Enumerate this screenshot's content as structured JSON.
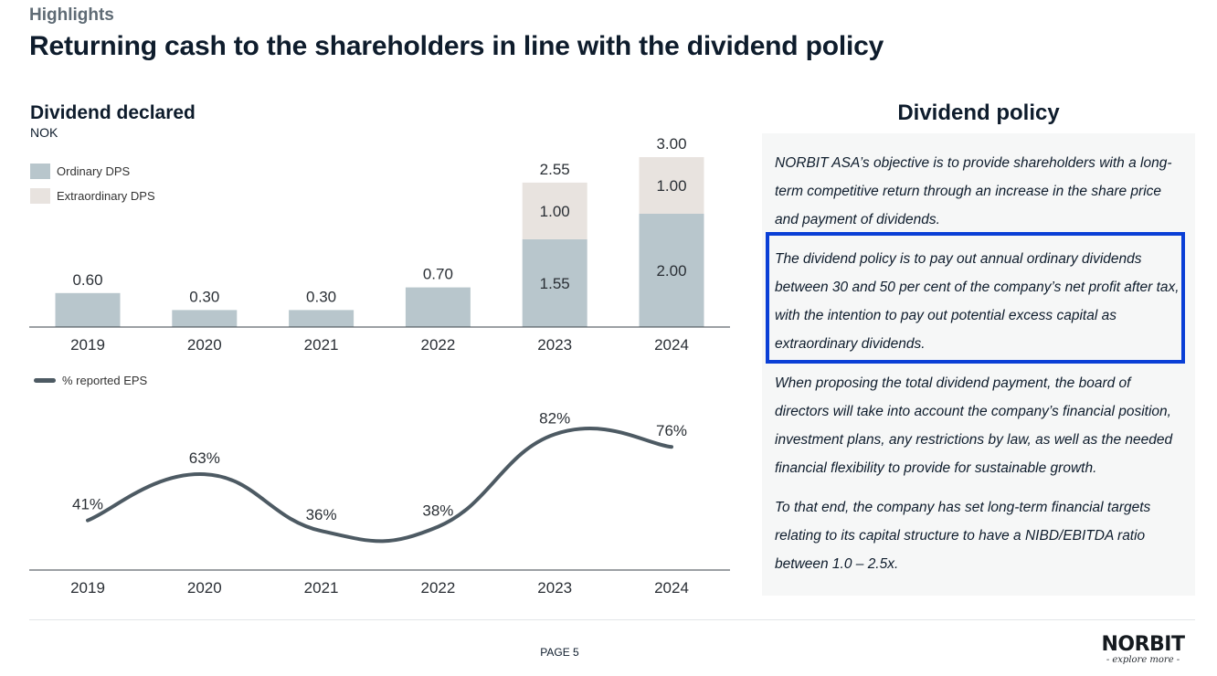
{
  "header": {
    "section": "Highlights",
    "title": "Returning cash to the shareholders in line with the dividend policy"
  },
  "colors": {
    "ordinary": "#b8c6cc",
    "extraordinary": "#e8e3df",
    "eps_line": "#4d5a63",
    "highlight_border": "#0a3fd6"
  },
  "chart_data": [
    {
      "type": "bar",
      "stacked": true,
      "title": "Dividend declared",
      "unit": "NOK",
      "categories": [
        "2019",
        "2020",
        "2021",
        "2022",
        "2023",
        "2024"
      ],
      "series": [
        {
          "name": "Ordinary DPS",
          "values": [
            0.6,
            0.3,
            0.3,
            0.7,
            1.55,
            2.0
          ],
          "labels": [
            "",
            "",
            "",
            "",
            "1.55",
            "2.00"
          ]
        },
        {
          "name": "Extraordinary DPS",
          "values": [
            0,
            0,
            0,
            0,
            1.0,
            1.0
          ],
          "labels": [
            "",
            "",
            "",
            "",
            "1.00",
            "1.00"
          ]
        }
      ],
      "totals": [
        "0.60",
        "0.30",
        "0.30",
        "0.70",
        "2.55",
        "3.00"
      ],
      "legend": "top-left",
      "ylim": [
        0,
        3.0
      ],
      "grid": false
    },
    {
      "type": "line",
      "smooth": true,
      "categories": [
        "2019",
        "2020",
        "2021",
        "2022",
        "2023",
        "2024"
      ],
      "series": [
        {
          "name": "% reported EPS",
          "values": [
            41,
            63,
            36,
            38,
            82,
            76
          ],
          "labels": [
            "41%",
            "63%",
            "36%",
            "38%",
            "82%",
            "76%"
          ]
        }
      ],
      "legend": "top-left",
      "grid": false
    }
  ],
  "policy": {
    "title": "Dividend policy",
    "paragraphs": [
      "NORBIT ASA’s objective is to provide shareholders with a long-term competitive return through an increase in the share price and payment of dividends.",
      "The dividend policy is to pay out annual ordinary dividends between 30 and 50 per cent of the company’s net profit after tax, with the intention to pay out potential excess capital as extraordinary dividends.",
      "When proposing the total dividend payment, the board of directors will take into account the company’s financial position, investment plans, any restrictions by law, as well as the needed financial flexibility to provide for sustainable growth.",
      "To that end, the company has set long-term financial targets relating to its capital structure to have a NIBD/EBITDA ratio between 1.0 – 2.5x."
    ]
  },
  "footer": {
    "page": "PAGE 5",
    "logo": "NORBIT",
    "tagline": "- explore more -"
  }
}
